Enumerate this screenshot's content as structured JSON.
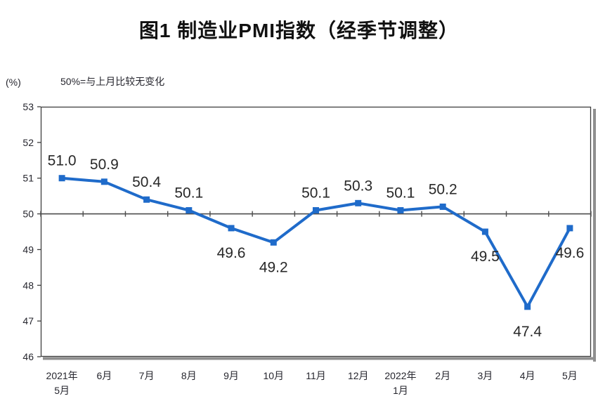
{
  "chart_data": {
    "type": "line",
    "title": "图1 制造业PMI指数（经季节调整）",
    "unit_label": "(%)",
    "note": "50%=与上月比较无变化",
    "categories": [
      "2021年\n5月",
      "6月",
      "7月",
      "8月",
      "9月",
      "10月",
      "11月",
      "12月",
      "2022年\n1月",
      "2月",
      "3月",
      "4月",
      "5月"
    ],
    "values": [
      51.0,
      50.9,
      50.4,
      50.1,
      49.6,
      49.2,
      50.1,
      50.3,
      50.1,
      50.2,
      49.5,
      47.4,
      49.6
    ],
    "value_labels": [
      "51.0",
      "50.9",
      "50.4",
      "50.1",
      "49.6",
      "49.2",
      "50.1",
      "50.3",
      "50.1",
      "50.2",
      "49.5",
      "47.4",
      "49.6"
    ],
    "xlabel": "",
    "ylabel": "(%)",
    "ylim": [
      46,
      53
    ],
    "ytick_step": 1,
    "yticks": [
      46,
      47,
      48,
      49,
      50,
      51,
      52,
      53
    ],
    "reference_line": 50,
    "grid": "off",
    "legend": "none",
    "marker": "square",
    "colors": {
      "line": "#1f6bca",
      "marker": "#1f6bca",
      "reference_line": "#4d4d4d",
      "plot_border": "#3f3f3f",
      "plot_shadow": "#8f8f8f",
      "axis_text": "#26262e",
      "point_label_text": "#282828",
      "title_text": "#111111",
      "background": "#ffffff"
    }
  }
}
